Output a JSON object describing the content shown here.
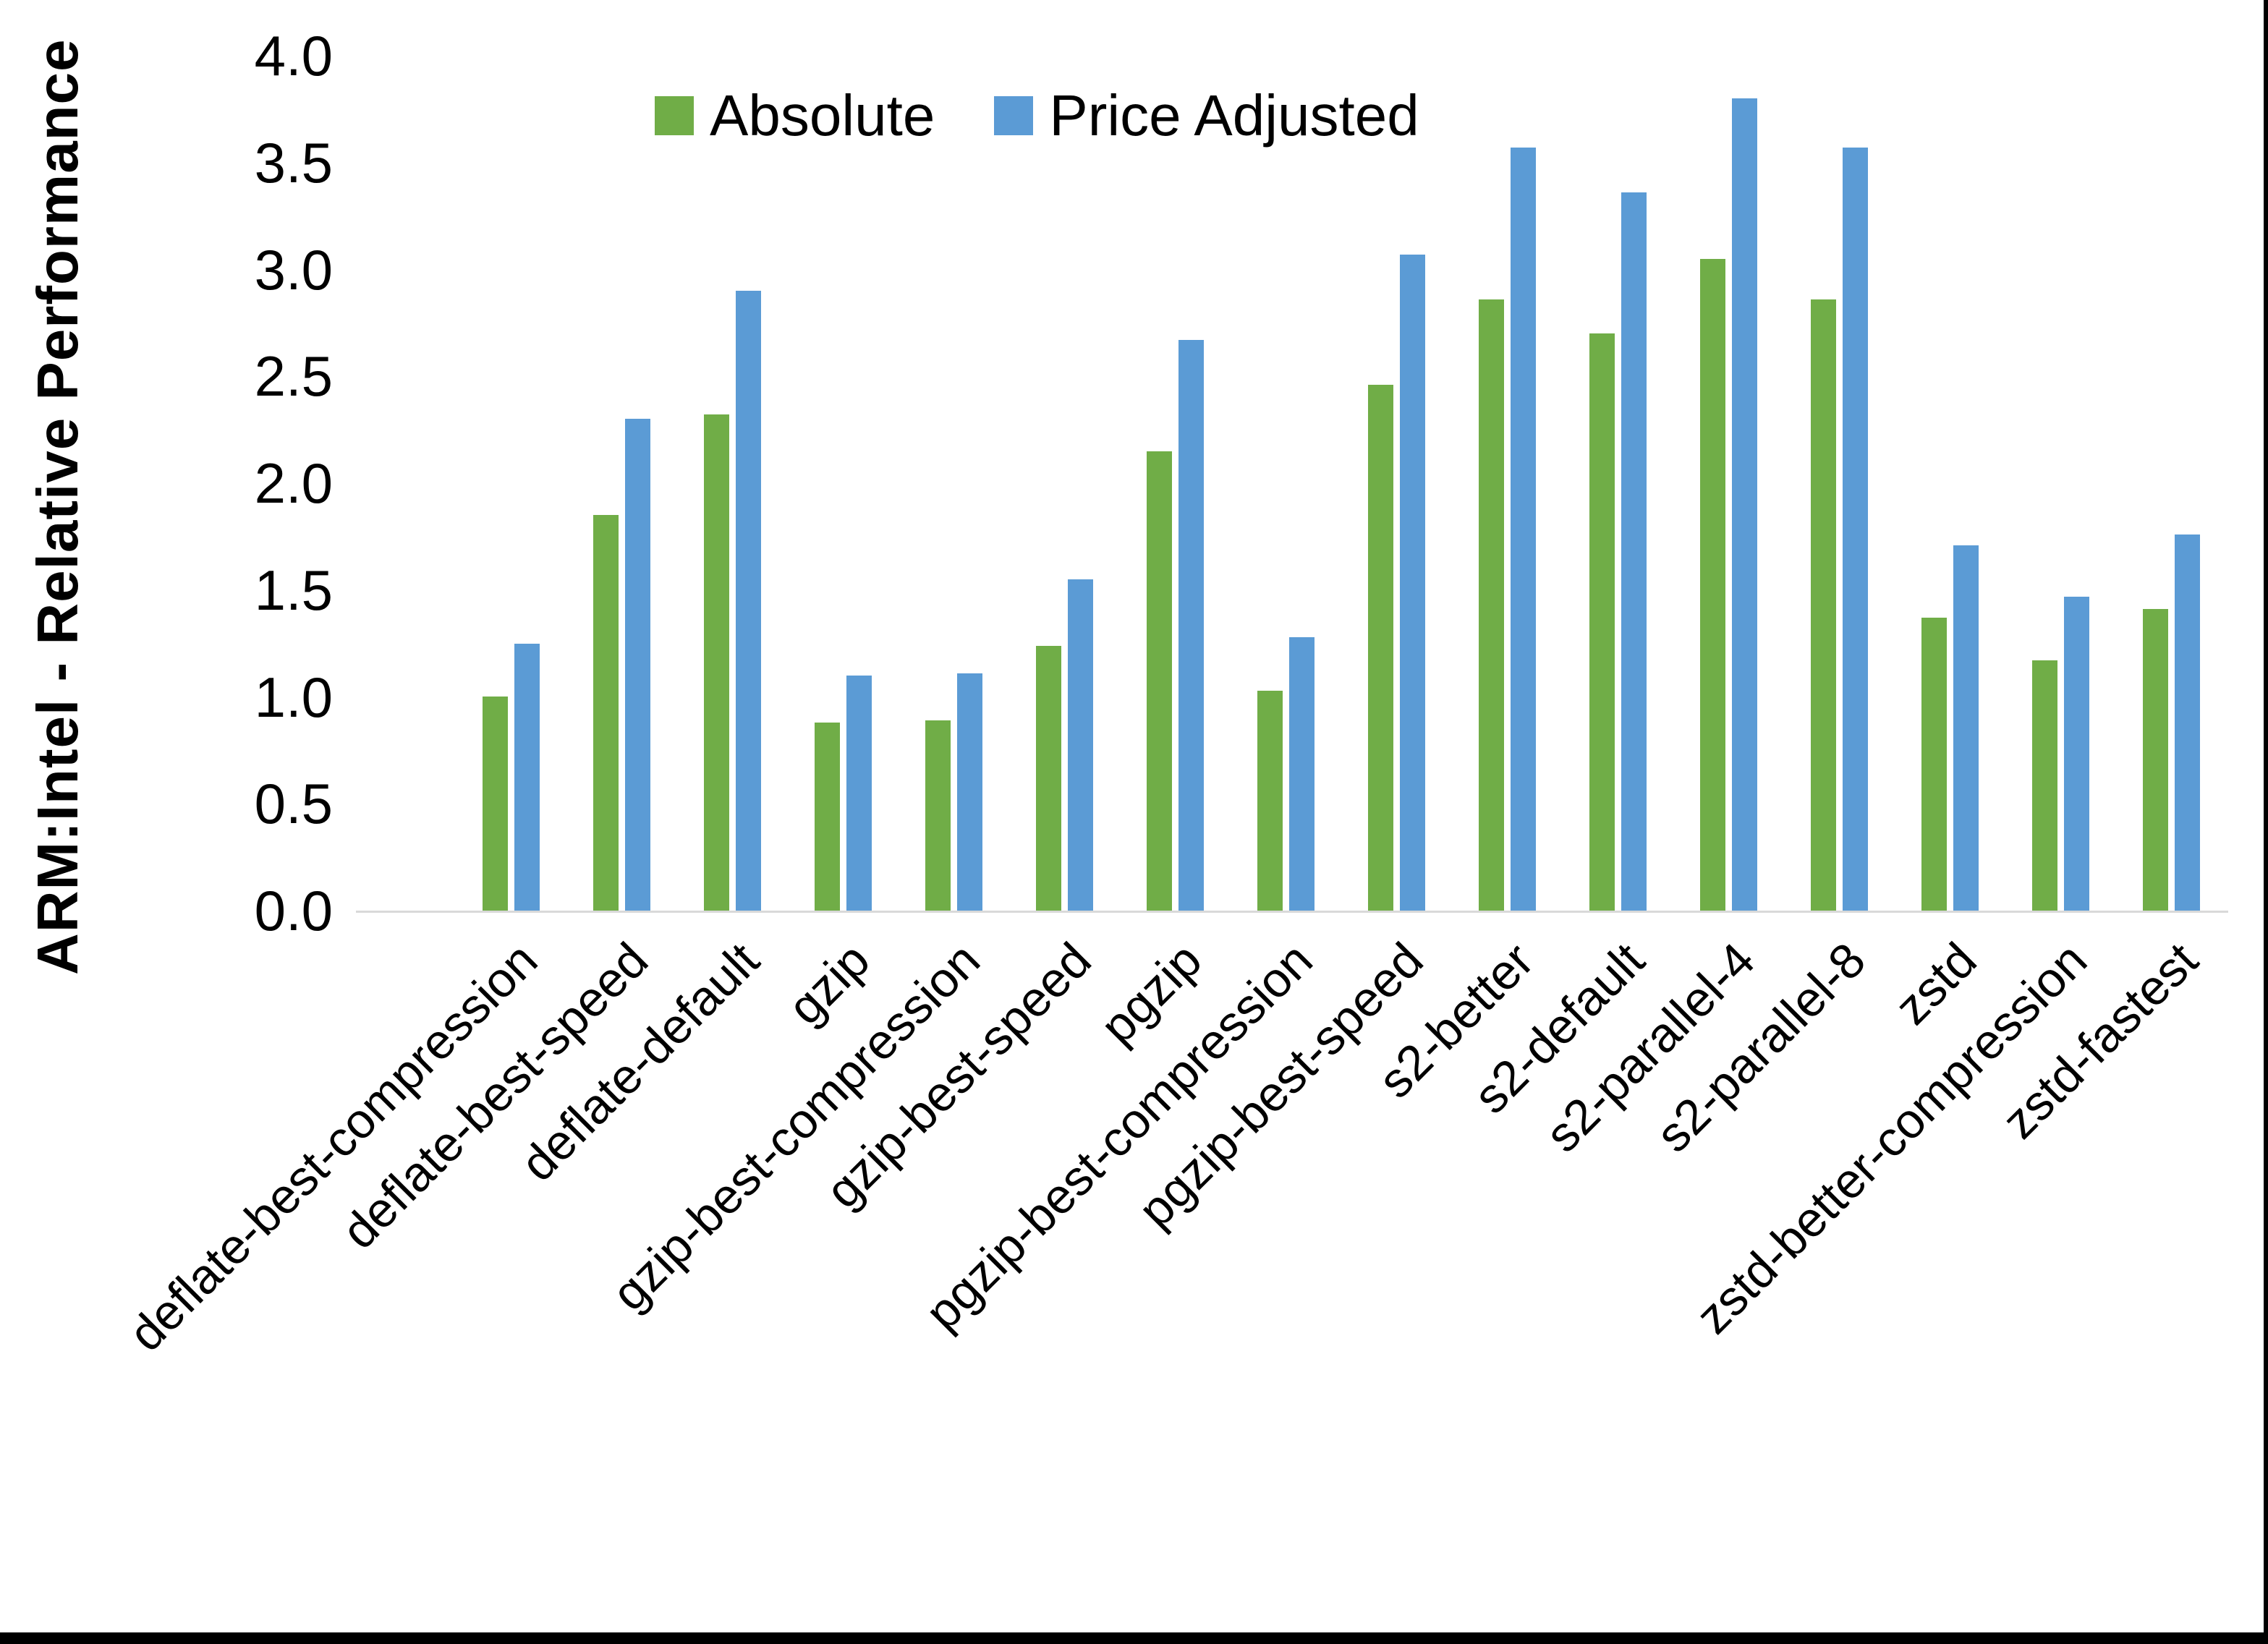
{
  "figure": {
    "background": "#FFFFFF",
    "border_color": "#000000"
  },
  "chart_data": {
    "type": "bar",
    "title": "",
    "ylabel": "ARM:Intel - Relative Performance",
    "xlabel": "",
    "ylim": [
      0.0,
      4.0
    ],
    "ytick_step": 0.5,
    "ytick_labels": [
      "0.0",
      "0.5",
      "1.0",
      "1.5",
      "2.0",
      "2.5",
      "3.0",
      "3.5",
      "4.0"
    ],
    "grid": false,
    "legend_position": "top-center",
    "axis_line_color": "#D9D9D9",
    "categories": [
      "deflate-best-compression",
      "deflate-best-speed",
      "deflate-default",
      "gzip",
      "gzip-best-compression",
      "gzip-best-speed",
      "pgzip",
      "pgzip-best-compression",
      "pgzip-best-speed",
      "s2-better",
      "s2-default",
      "s2-parallel-4",
      "s2-parallel-8",
      "zstd",
      "zstd-better-compression",
      "zstd-fastest"
    ],
    "series": [
      {
        "name": "Absolute",
        "color": "#70AD47",
        "values": [
          1.0,
          1.85,
          2.32,
          0.88,
          0.89,
          1.24,
          2.15,
          1.03,
          2.46,
          2.86,
          2.7,
          3.05,
          2.86,
          1.37,
          1.17,
          1.41
        ]
      },
      {
        "name": "Price Adjusted",
        "color": "#5B9BD5",
        "values": [
          1.25,
          2.3,
          2.9,
          1.1,
          1.11,
          1.55,
          2.67,
          1.28,
          3.07,
          3.57,
          3.36,
          3.8,
          3.57,
          1.71,
          1.47,
          1.76
        ]
      }
    ]
  }
}
